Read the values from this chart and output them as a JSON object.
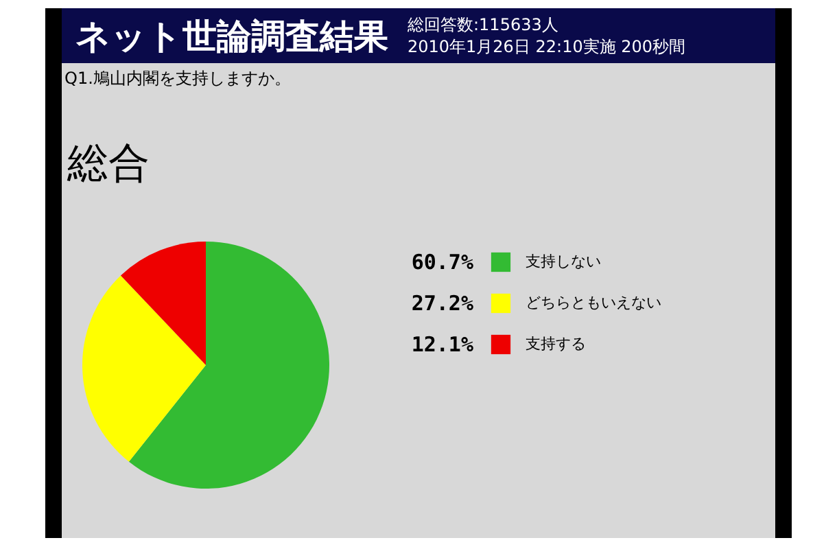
{
  "chart_data": {
    "type": "pie",
    "title": "ネット世論調査結果",
    "subtitle": "総回答数:115633人\n2010年1月26日 22:10実施 200秒間",
    "annotations": [
      "Q1.鳩山内閣を支持しますか。",
      "総合"
    ],
    "categories": [
      "支持しない",
      "どちらともいえない",
      "支持する"
    ],
    "values": [
      60.7,
      27.2,
      12.1
    ],
    "colors": [
      "#33bb33",
      "#ffff00",
      "#ee0000"
    ],
    "value_labels": [
      "60.7%",
      "27.2%",
      "12.1%"
    ],
    "legend": "right"
  }
}
